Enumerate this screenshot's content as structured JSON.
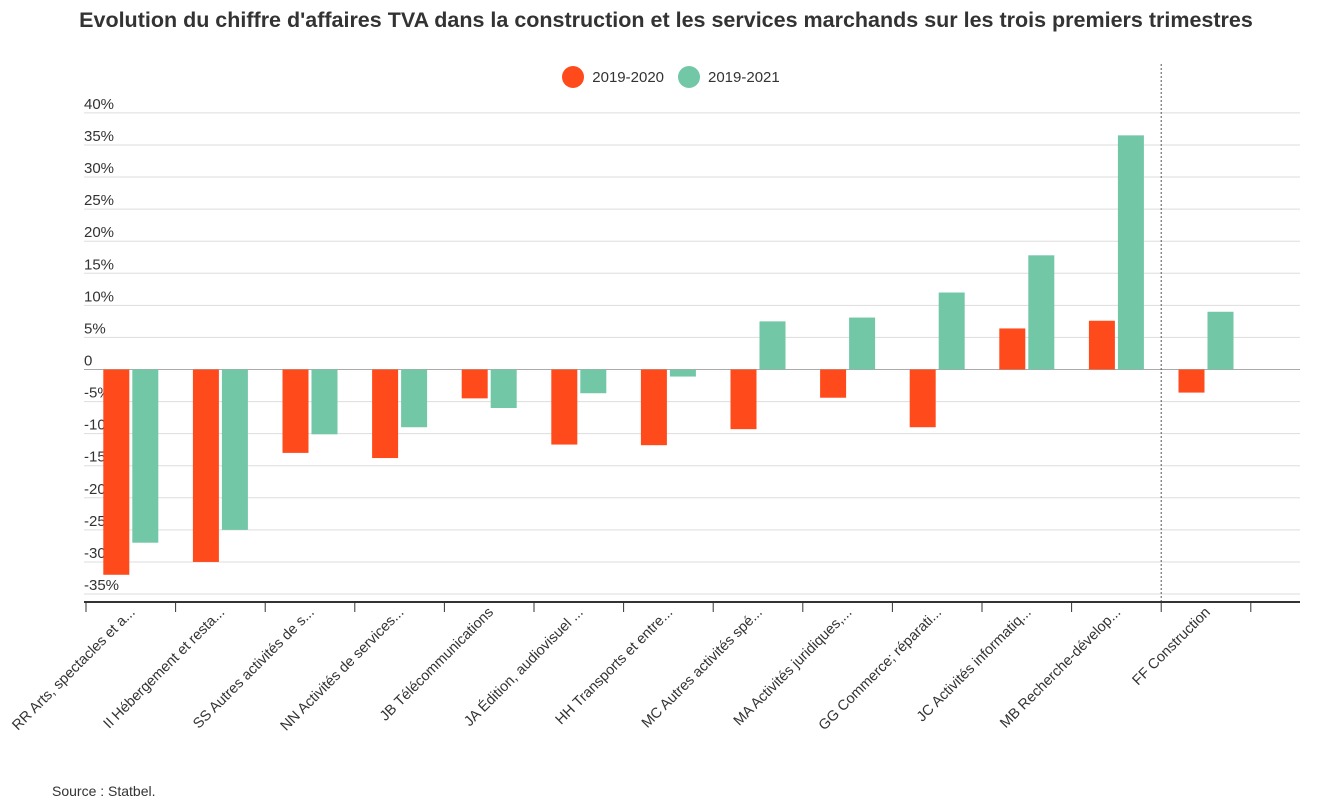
{
  "chart_data": {
    "type": "bar",
    "title": "Evolution du chiffre d'affaires TVA dans la construction et les services marchands sur les trois premiers trimestres",
    "categories": [
      "RR Arts, spectacles et a...",
      "II Hébergement et resta...",
      "SS Autres activités de s...",
      "NN Activités de services...",
      "JB Télécommunications",
      "JA Édition, audiovisuel ...",
      "HH Transports et entre...",
      "MC Autres activités spé...",
      "MA Activités juridiques,...",
      "GG Commerce; réparati...",
      "JC Activités informatiq...",
      "MB Recherche-dévelop...",
      "FF Construction"
    ],
    "series": [
      {
        "name": "2019-2020",
        "color": "#ff4b1c",
        "values": [
          -32,
          -30,
          -13,
          -13.8,
          -4.5,
          -11.7,
          -11.8,
          -9.3,
          -4.4,
          -9,
          6.4,
          7.6,
          -3.6
        ]
      },
      {
        "name": "2019-2021",
        "color": "#72c7a7",
        "values": [
          -27,
          -25,
          -10.1,
          -9,
          -6,
          -3.7,
          -1.1,
          7.5,
          8.1,
          12,
          17.8,
          36.5,
          9
        ]
      }
    ],
    "ylim": [
      -36,
      40
    ],
    "yticks": [
      40,
      35,
      30,
      25,
      20,
      15,
      10,
      5,
      0,
      -5,
      -10,
      -15,
      -20,
      -25,
      -30,
      -35
    ],
    "ytick_labels": [
      "40%",
      "35%",
      "30%",
      "25%",
      "20%",
      "15%",
      "10%",
      "5%",
      "0",
      "-5%",
      "-10%",
      "-15%",
      "-20%",
      "-25%",
      "-30%",
      "-35%"
    ],
    "xlabel": "",
    "ylabel": "",
    "legend": "top-center",
    "grid": true,
    "separator_before_category": 12
  },
  "source": "Source : Statbel."
}
